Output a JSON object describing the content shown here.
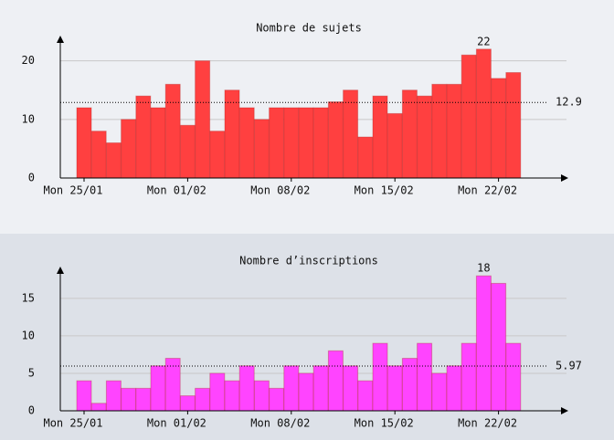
{
  "chart_data": [
    {
      "type": "bar",
      "title": "Nombre de sujets",
      "categories": [
        "Mon 25/01",
        null,
        null,
        null,
        null,
        null,
        null,
        "Mon 01/02",
        null,
        null,
        null,
        null,
        null,
        null,
        "Mon 08/02",
        null,
        null,
        null,
        null,
        null,
        null,
        "Mon 15/02",
        null,
        null,
        null,
        null,
        null,
        null,
        "Mon 22/02",
        null
      ],
      "values": [
        12,
        8,
        6,
        10,
        14,
        12,
        16,
        9,
        20,
        8,
        15,
        12,
        10,
        12,
        12,
        12,
        12,
        13,
        15,
        7,
        14,
        11,
        15,
        14,
        16,
        16,
        21,
        22,
        17,
        18
      ],
      "color": "#ff4040",
      "ylim": [
        0,
        24
      ],
      "yticks": [
        0,
        10,
        20
      ],
      "grid": true,
      "average": 12.9
    },
    {
      "type": "bar",
      "title": "Nombre d’inscriptions",
      "categories": [
        "Mon 25/01",
        null,
        null,
        null,
        null,
        null,
        null,
        "Mon 01/02",
        null,
        null,
        null,
        null,
        null,
        null,
        "Mon 08/02",
        null,
        null,
        null,
        null,
        null,
        null,
        "Mon 15/02",
        null,
        null,
        null,
        null,
        null,
        null,
        "Mon 22/02",
        null
      ],
      "values": [
        4,
        1,
        4,
        3,
        3,
        6,
        7,
        2,
        3,
        5,
        4,
        6,
        4,
        3,
        6,
        5,
        6,
        8,
        6,
        4,
        9,
        6,
        7,
        9,
        5,
        6,
        9,
        18,
        17,
        9
      ],
      "color": "#ff44ff",
      "ylim": [
        0,
        19
      ],
      "yticks": [
        0,
        5,
        10,
        15
      ],
      "grid": true,
      "average": 5.97
    }
  ]
}
